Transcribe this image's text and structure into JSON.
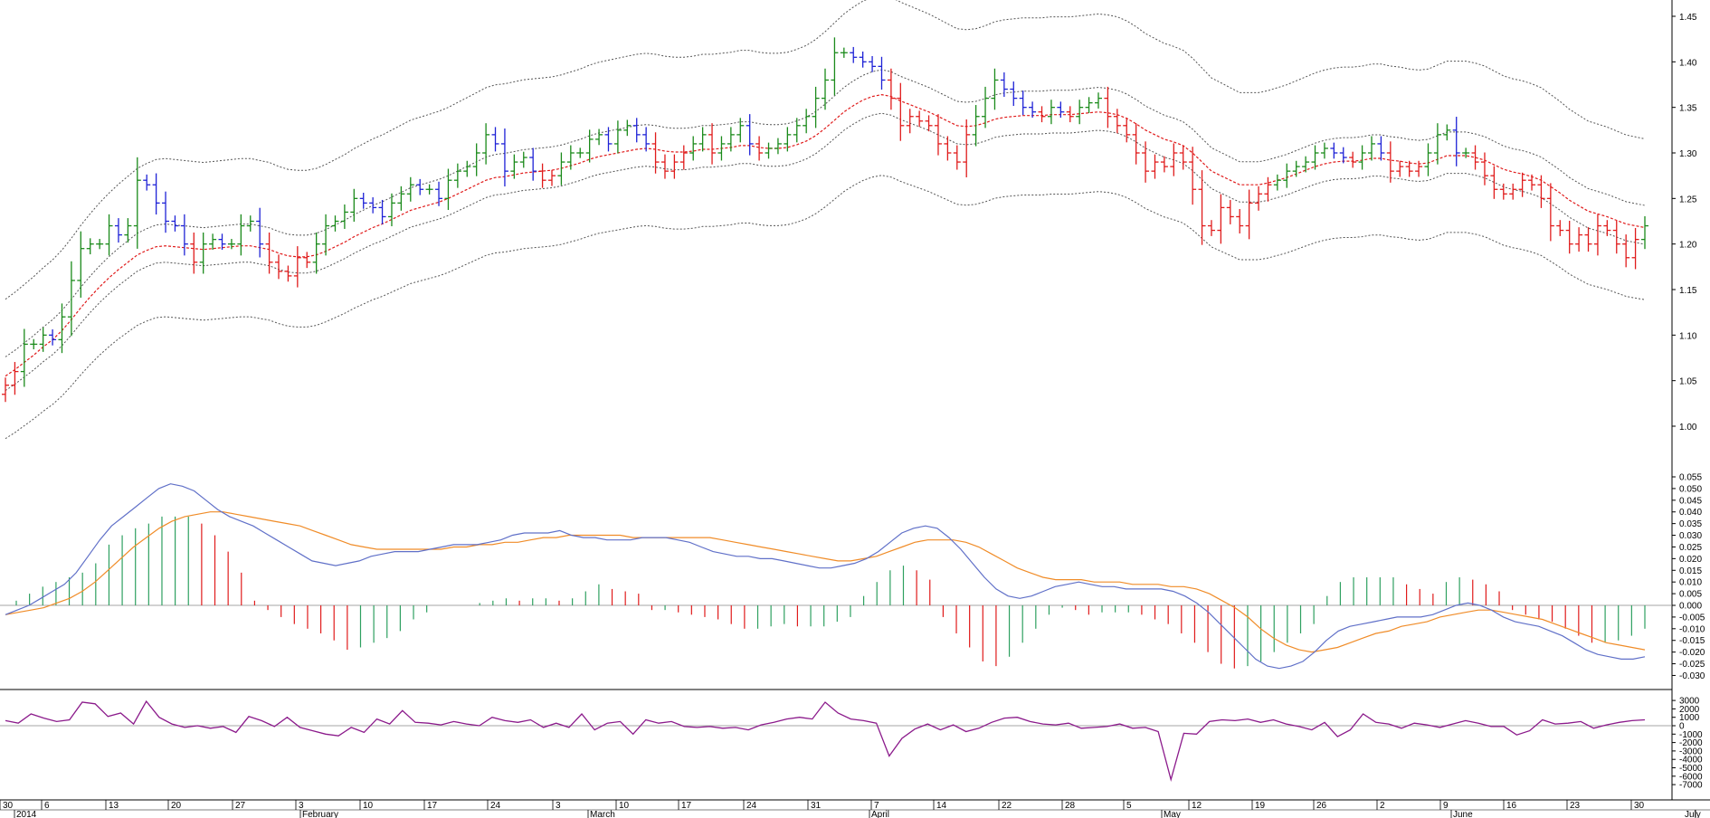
{
  "chart_data": [
    {
      "type": "ohlc",
      "panel": "price",
      "bar_colors": {
        "up": "#1a8a1a",
        "neutral": "#1e22d6",
        "down": "#e01b1b"
      },
      "ylim": [
        0.97,
        1.46
      ],
      "y_ticks": [
        "1.00",
        "1.05",
        "1.10",
        "1.15",
        "1.20",
        "1.25",
        "1.30",
        "1.35",
        "1.40",
        "1.45"
      ],
      "closes": [
        1.045,
        1.06,
        1.09,
        1.09,
        1.1,
        1.095,
        1.12,
        1.16,
        1.195,
        1.2,
        1.2,
        1.22,
        1.21,
        1.22,
        1.27,
        1.265,
        1.245,
        1.225,
        1.22,
        1.2,
        1.18,
        1.2,
        1.205,
        1.2,
        1.2,
        1.22,
        1.225,
        1.2,
        1.18,
        1.17,
        1.165,
        1.185,
        1.18,
        1.2,
        1.22,
        1.225,
        1.235,
        1.25,
        1.245,
        1.24,
        1.23,
        1.245,
        1.255,
        1.265,
        1.26,
        1.26,
        1.25,
        1.27,
        1.28,
        1.285,
        1.3,
        1.32,
        1.31,
        1.28,
        1.29,
        1.295,
        1.28,
        1.27,
        1.275,
        1.29,
        1.3,
        1.3,
        1.315,
        1.32,
        1.31,
        1.325,
        1.33,
        1.32,
        1.31,
        1.29,
        1.28,
        1.29,
        1.3,
        1.31,
        1.32,
        1.3,
        1.31,
        1.32,
        1.33,
        1.31,
        1.3,
        1.305,
        1.31,
        1.32,
        1.33,
        1.34,
        1.36,
        1.38,
        1.41,
        1.41,
        1.405,
        1.4,
        1.395,
        1.38,
        1.36,
        1.33,
        1.34,
        1.335,
        1.33,
        1.31,
        1.3,
        1.29,
        1.32,
        1.34,
        1.36,
        1.38,
        1.37,
        1.36,
        1.35,
        1.345,
        1.34,
        1.35,
        1.345,
        1.34,
        1.35,
        1.355,
        1.36,
        1.34,
        1.33,
        1.32,
        1.3,
        1.28,
        1.29,
        1.285,
        1.3,
        1.29,
        1.26,
        1.22,
        1.215,
        1.24,
        1.23,
        1.22,
        1.245,
        1.255,
        1.265,
        1.27,
        1.28,
        1.285,
        1.29,
        1.3,
        1.305,
        1.3,
        1.295,
        1.29,
        1.3,
        1.31,
        1.3,
        1.28,
        1.285,
        1.28,
        1.285,
        1.3,
        1.32,
        1.325,
        1.3,
        1.3,
        1.29,
        1.275,
        1.26,
        1.255,
        1.26,
        1.27,
        1.265,
        1.25,
        1.22,
        1.215,
        1.2,
        1.21,
        1.2,
        1.22,
        1.215,
        1.2,
        1.185,
        1.205,
        1.22
      ],
      "ma": [
        1.055,
        1.062,
        1.07,
        1.078,
        1.087,
        1.095,
        1.105,
        1.117,
        1.13,
        1.142,
        1.153,
        1.163,
        1.172,
        1.18,
        1.188,
        1.193,
        1.197,
        1.198,
        1.197,
        1.196,
        1.195,
        1.194,
        1.195,
        1.196,
        1.197,
        1.198,
        1.198,
        1.196,
        1.194,
        1.19,
        1.187,
        1.186,
        1.186,
        1.188,
        1.192,
        1.197,
        1.202,
        1.208,
        1.213,
        1.218,
        1.222,
        1.227,
        1.232,
        1.237,
        1.24,
        1.243,
        1.246,
        1.25,
        1.255,
        1.26,
        1.265,
        1.27,
        1.273,
        1.274,
        1.276,
        1.278,
        1.279,
        1.28,
        1.281,
        1.283,
        1.286,
        1.289,
        1.293,
        1.296,
        1.298,
        1.3,
        1.302,
        1.304,
        1.305,
        1.304,
        1.302,
        1.301,
        1.301,
        1.302,
        1.304,
        1.304,
        1.305,
        1.306,
        1.308,
        1.308,
        1.306,
        1.305,
        1.305,
        1.306,
        1.309,
        1.313,
        1.319,
        1.327,
        1.336,
        1.345,
        1.352,
        1.358,
        1.362,
        1.364,
        1.362,
        1.357,
        1.353,
        1.349,
        1.345,
        1.34,
        1.335,
        1.33,
        1.329,
        1.33,
        1.333,
        1.337,
        1.339,
        1.34,
        1.341,
        1.341,
        1.341,
        1.342,
        1.342,
        1.342,
        1.343,
        1.344,
        1.345,
        1.344,
        1.342,
        1.338,
        1.332,
        1.325,
        1.32,
        1.315,
        1.312,
        1.308,
        1.3,
        1.29,
        1.28,
        1.275,
        1.27,
        1.265,
        1.265,
        1.265,
        1.267,
        1.27,
        1.273,
        1.277,
        1.281,
        1.285,
        1.288,
        1.29,
        1.291,
        1.291,
        1.292,
        1.294,
        1.294,
        1.292,
        1.291,
        1.289,
        1.288,
        1.289,
        1.293,
        1.297,
        1.297,
        1.297,
        1.295,
        1.292,
        1.287,
        1.282,
        1.279,
        1.277,
        1.274,
        1.27,
        1.263,
        1.256,
        1.248,
        1.242,
        1.236,
        1.233,
        1.23,
        1.226,
        1.222,
        1.22,
        1.218
      ]
    },
    {
      "type": "macd",
      "panel": "macd",
      "ylim": [
        -0.032,
        0.057
      ],
      "y_ticks": [
        "0.055",
        "0.050",
        "0.045",
        "0.040",
        "0.035",
        "0.030",
        "0.025",
        "0.020",
        "0.015",
        "0.010",
        "0.005",
        "0.000",
        "-0.005",
        "-0.010",
        "-0.015",
        "-0.020",
        "-0.025",
        "-0.030"
      ],
      "line_colors": {
        "macd": "#6070c8",
        "signal": "#f08c28",
        "hist_up": "#2ea060",
        "hist_down": "#e01b1b"
      },
      "macd": [
        -0.004,
        -0.002,
        0.0,
        0.003,
        0.006,
        0.009,
        0.014,
        0.021,
        0.028,
        0.034,
        0.038,
        0.042,
        0.046,
        0.05,
        0.052,
        0.051,
        0.049,
        0.045,
        0.041,
        0.038,
        0.036,
        0.034,
        0.031,
        0.028,
        0.025,
        0.022,
        0.019,
        0.018,
        0.017,
        0.018,
        0.019,
        0.021,
        0.022,
        0.023,
        0.023,
        0.023,
        0.024,
        0.025,
        0.026,
        0.026,
        0.026,
        0.027,
        0.028,
        0.03,
        0.031,
        0.031,
        0.031,
        0.032,
        0.03,
        0.029,
        0.029,
        0.028,
        0.028,
        0.028,
        0.029,
        0.029,
        0.029,
        0.028,
        0.027,
        0.025,
        0.023,
        0.022,
        0.021,
        0.021,
        0.02,
        0.02,
        0.019,
        0.018,
        0.017,
        0.016,
        0.016,
        0.017,
        0.018,
        0.02,
        0.023,
        0.027,
        0.031,
        0.033,
        0.034,
        0.033,
        0.029,
        0.024,
        0.018,
        0.012,
        0.007,
        0.004,
        0.003,
        0.004,
        0.006,
        0.008,
        0.009,
        0.01,
        0.009,
        0.008,
        0.008,
        0.007,
        0.007,
        0.007,
        0.007,
        0.006,
        0.004,
        0.001,
        -0.003,
        -0.008,
        -0.013,
        -0.018,
        -0.023,
        -0.026,
        -0.027,
        -0.026,
        -0.024,
        -0.02,
        -0.015,
        -0.011,
        -0.009,
        -0.008,
        -0.007,
        -0.006,
        -0.005,
        -0.005,
        -0.005,
        -0.004,
        -0.002,
        0.0,
        0.001,
        0.0,
        -0.002,
        -0.005,
        -0.007,
        -0.008,
        -0.009,
        -0.011,
        -0.013,
        -0.016,
        -0.019,
        -0.021,
        -0.022,
        -0.023,
        -0.023,
        -0.022
      ],
      "signal": [
        -0.004,
        -0.003,
        -0.002,
        -0.001,
        0.001,
        0.003,
        0.006,
        0.01,
        0.015,
        0.02,
        0.025,
        0.029,
        0.033,
        0.036,
        0.038,
        0.039,
        0.04,
        0.04,
        0.039,
        0.038,
        0.037,
        0.036,
        0.035,
        0.034,
        0.032,
        0.03,
        0.028,
        0.026,
        0.025,
        0.024,
        0.024,
        0.024,
        0.024,
        0.024,
        0.024,
        0.025,
        0.025,
        0.026,
        0.026,
        0.027,
        0.027,
        0.028,
        0.029,
        0.029,
        0.03,
        0.03,
        0.03,
        0.03,
        0.03,
        0.029,
        0.029,
        0.029,
        0.029,
        0.029,
        0.029,
        0.029,
        0.028,
        0.027,
        0.026,
        0.025,
        0.024,
        0.023,
        0.022,
        0.021,
        0.02,
        0.019,
        0.019,
        0.02,
        0.021,
        0.023,
        0.025,
        0.027,
        0.028,
        0.028,
        0.028,
        0.027,
        0.025,
        0.022,
        0.019,
        0.016,
        0.014,
        0.012,
        0.011,
        0.011,
        0.011,
        0.01,
        0.01,
        0.01,
        0.009,
        0.009,
        0.009,
        0.008,
        0.008,
        0.007,
        0.005,
        0.002,
        -0.001,
        -0.005,
        -0.01,
        -0.014,
        -0.017,
        -0.019,
        -0.02,
        -0.019,
        -0.018,
        -0.016,
        -0.014,
        -0.012,
        -0.011,
        -0.009,
        -0.008,
        -0.007,
        -0.005,
        -0.004,
        -0.003,
        -0.002,
        -0.002,
        -0.003,
        -0.004,
        -0.005,
        -0.006,
        -0.008,
        -0.01,
        -0.012,
        -0.014,
        -0.016,
        -0.017,
        -0.018,
        -0.019
      ],
      "hist": [
        0.002,
        0.005,
        0.008,
        0.01,
        0.012,
        0.014,
        0.018,
        0.026,
        0.03,
        0.033,
        0.035,
        0.038,
        0.038,
        0.038,
        0.035,
        0.03,
        0.023,
        0.014,
        0.002,
        -0.002,
        -0.005,
        -0.008,
        -0.01,
        -0.012,
        -0.015,
        -0.019,
        -0.018,
        -0.016,
        -0.014,
        -0.011,
        -0.006,
        -0.003,
        0.0,
        0.0,
        0.0,
        0.001,
        0.002,
        0.003,
        0.002,
        0.003,
        0.003,
        0.002,
        0.003,
        0.006,
        0.009,
        0.007,
        0.006,
        0.005,
        -0.002,
        -0.002,
        -0.003,
        -0.004,
        -0.005,
        -0.006,
        -0.008,
        -0.01,
        -0.01,
        -0.009,
        -0.008,
        -0.009,
        -0.009,
        -0.009,
        -0.007,
        -0.005,
        0.004,
        0.01,
        0.015,
        0.017,
        0.015,
        0.011,
        -0.005,
        -0.012,
        -0.018,
        -0.024,
        -0.026,
        -0.022,
        -0.016,
        -0.01,
        -0.004,
        -0.001,
        -0.002,
        -0.004,
        -0.003,
        -0.003,
        -0.003,
        -0.004,
        -0.006,
        -0.008,
        -0.012,
        -0.016,
        -0.02,
        -0.025,
        -0.027,
        -0.026,
        -0.024,
        -0.02,
        -0.016,
        -0.012,
        -0.008,
        0.004,
        0.01,
        0.012,
        0.012,
        0.012,
        0.012,
        0.009,
        0.007,
        0.005,
        0.01,
        0.012,
        0.011,
        0.009,
        0.006,
        -0.002,
        -0.004,
        -0.006,
        -0.007,
        -0.01,
        -0.013,
        -0.016,
        -0.016,
        -0.015,
        -0.013,
        -0.01
      ]
    },
    {
      "type": "line",
      "panel": "oscillator",
      "ylim": [
        -7200,
        3600
      ],
      "y_ticks": [
        "3000",
        "2000",
        "1000",
        "0",
        "-1000",
        "-2000",
        "-3000",
        "-4000",
        "-5000",
        "-6000",
        "-7000"
      ],
      "line_color": "#8b1a8b",
      "values": [
        600,
        300,
        1400,
        900,
        500,
        700,
        2800,
        2600,
        1100,
        1500,
        200,
        2900,
        1000,
        200,
        -200,
        0,
        -300,
        -100,
        -800,
        1100,
        600,
        -100,
        1000,
        -200,
        -600,
        -1000,
        -1200,
        -200,
        -800,
        800,
        200,
        1800,
        400,
        300,
        100,
        500,
        200,
        0,
        1000,
        600,
        400,
        700,
        -200,
        300,
        -200,
        1400,
        -500,
        300,
        500,
        -1000,
        700,
        300,
        500,
        -100,
        -200,
        -100,
        -300,
        -200,
        -500,
        100,
        400,
        800,
        1000,
        800,
        2800,
        1500,
        800,
        600,
        300,
        -3600,
        -1500,
        -400,
        200,
        -500,
        100,
        -700,
        -300,
        400,
        900,
        1000,
        500,
        200,
        100,
        300,
        -300,
        -200,
        -100,
        200,
        -300,
        -200,
        -700,
        -6400,
        -900,
        -1000,
        500,
        700,
        600,
        800,
        400,
        700,
        200,
        -100,
        -500,
        400,
        -1300,
        -500,
        1400,
        400,
        200,
        -300,
        300,
        100,
        -200,
        200,
        600,
        300,
        -100,
        -100,
        -1100,
        -600,
        700,
        200,
        300,
        500,
        -300,
        100,
        400,
        600,
        700
      ]
    }
  ],
  "x_axis": {
    "week_labels": [
      "30",
      "6",
      "13",
      "20",
      "27",
      "3",
      "10",
      "17",
      "24",
      "3",
      "10",
      "17",
      "24",
      "31",
      "7",
      "14",
      "22",
      "28",
      "5",
      "12",
      "19",
      "26",
      "2",
      "9",
      "16",
      "23",
      "30"
    ],
    "month_labels": [
      "2014",
      "February",
      "March",
      "April",
      "May",
      "June",
      "July"
    ]
  },
  "colors": {
    "envelope": "#555555",
    "moving_average": "#e01b1b",
    "zero_line": "#888888"
  }
}
